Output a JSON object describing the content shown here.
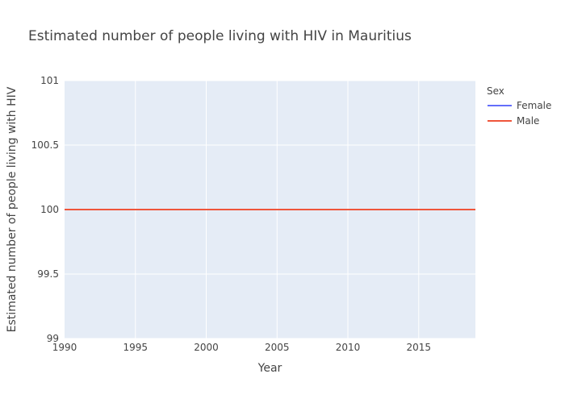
{
  "chart_data": {
    "type": "line",
    "title": "Estimated number of people living with HIV in Mauritius",
    "xlabel": "Year",
    "ylabel": "Estimated number of people living with HIV",
    "xlim": [
      1990,
      2019
    ],
    "ylim": [
      99,
      101
    ],
    "x_ticks": [
      1990,
      1995,
      2000,
      2005,
      2010,
      2015
    ],
    "y_ticks": [
      99,
      99.5,
      100,
      100.5,
      101
    ],
    "grid": true,
    "legend": {
      "title": "Sex",
      "placement": "top-right"
    },
    "series": [
      {
        "name": "Female",
        "color": "#636efa",
        "x": [
          1990,
          2019
        ],
        "y": [
          100,
          100
        ]
      },
      {
        "name": "Male",
        "color": "#ef553b",
        "x": [
          1990,
          2019
        ],
        "y": [
          100,
          100
        ]
      }
    ]
  }
}
